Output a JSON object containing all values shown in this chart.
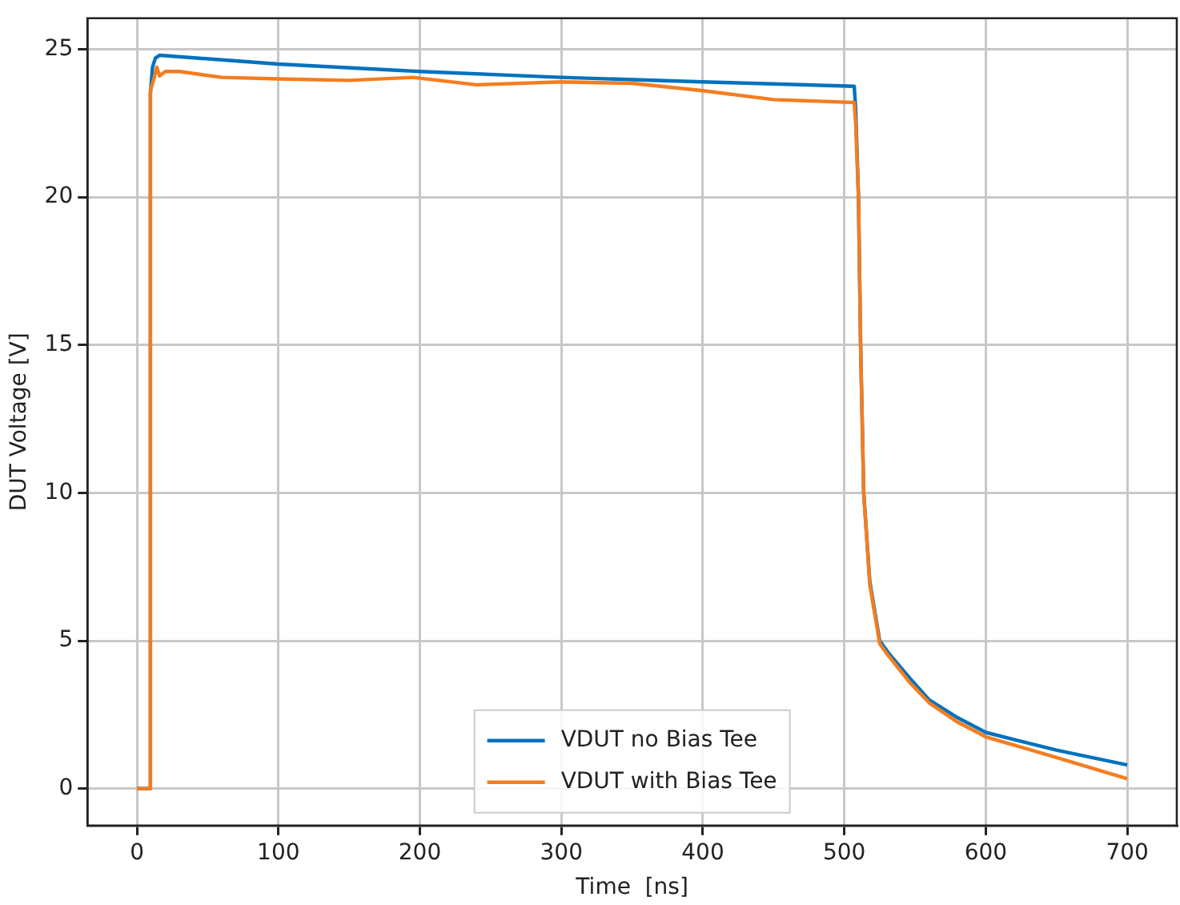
{
  "chart_data": {
    "type": "line",
    "xlabel": "Time  [ns]",
    "ylabel": "DUT Voltage [V]",
    "xlim": [
      -35,
      735
    ],
    "ylim": [
      -1.25,
      26.05
    ],
    "xticks": [
      0,
      100,
      200,
      300,
      400,
      500,
      600,
      700
    ],
    "yticks": [
      0,
      5,
      10,
      15,
      20,
      25
    ],
    "grid": true,
    "legend": "bottom",
    "marker": "none",
    "line_style": "solid",
    "series": [
      {
        "name": "VDUT no Bias Tee",
        "color": "#0072bd",
        "x": [
          0,
          9,
          9.5,
          11,
          13,
          16,
          100,
          200,
          300,
          400,
          507,
          508,
          510,
          511.5,
          513.7,
          518,
          525,
          531,
          546,
          560,
          580,
          600,
          650,
          700
        ],
        "values": [
          0,
          0,
          23.5,
          24.4,
          24.7,
          24.8,
          24.5,
          24.25,
          24.05,
          23.9,
          23.75,
          23.0,
          20,
          15,
          10,
          7,
          5,
          4.6,
          3.75,
          3.0,
          2.4,
          1.9,
          1.3,
          0.8
        ]
      },
      {
        "name": "VDUT with Bias Tee",
        "color": "#f47d20",
        "x": [
          0,
          9,
          9.5,
          12,
          14,
          16,
          20,
          30,
          60,
          100,
          150,
          195,
          240,
          300,
          350,
          400,
          450,
          507,
          508,
          510,
          511.5,
          513.7,
          518,
          525,
          531,
          546,
          560,
          580,
          600,
          650,
          700
        ],
        "values": [
          0,
          0,
          23.6,
          24.0,
          24.4,
          24.1,
          24.25,
          24.25,
          24.05,
          24.0,
          23.95,
          24.05,
          23.8,
          23.9,
          23.85,
          23.6,
          23.3,
          23.2,
          22.5,
          20,
          15,
          10,
          6.9,
          4.9,
          4.5,
          3.6,
          2.9,
          2.25,
          1.75,
          1.05,
          0.33
        ]
      }
    ]
  }
}
